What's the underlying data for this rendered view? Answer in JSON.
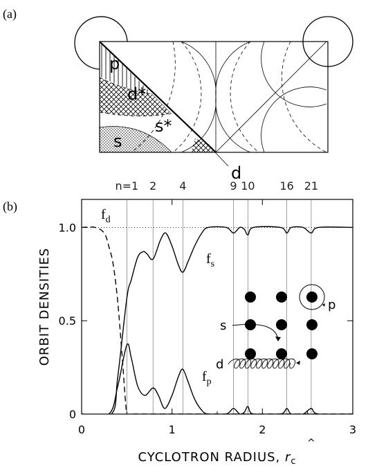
{
  "panel_a": {
    "label": "(a)",
    "regions": {
      "p": "p",
      "d_star": "d*",
      "s": "s",
      "s_star": "s*",
      "d": "d"
    }
  },
  "panel_b": {
    "label": "(b)",
    "n_labels": [
      "n=1",
      "2",
      "4",
      "9",
      "10",
      "16",
      "21"
    ],
    "inset": {
      "s_label": "s",
      "p_label": "p",
      "d_label": "d"
    }
  },
  "chart_data": {
    "type": "line",
    "title": "",
    "xlabel": "CYCLOTRON RADIUS, r̂c",
    "ylabel": "ORBIT DENSITIES",
    "xlim": [
      0,
      3
    ],
    "ylim": [
      0,
      1.15
    ],
    "xticks": [
      "0",
      "1",
      "2",
      "3"
    ],
    "yticks": [
      "0",
      "0.5",
      "1.0"
    ],
    "commensurate_n": [
      1,
      2,
      4,
      9,
      10,
      16,
      21
    ],
    "commensurate_x": [
      0.5,
      0.79,
      1.12,
      1.68,
      1.84,
      2.27,
      2.54
    ],
    "series": [
      {
        "name": "fd",
        "style": "dashed",
        "x": [
          0,
          0.15,
          0.25,
          0.3,
          0.35,
          0.4,
          0.45,
          0.5,
          0.55,
          3
        ],
        "y": [
          1.0,
          1.0,
          0.97,
          0.9,
          0.8,
          0.6,
          0.3,
          0.0,
          0.0,
          0.0
        ]
      },
      {
        "name": "fs",
        "style": "solid",
        "x": [
          0,
          0.33,
          0.4,
          0.5,
          0.55,
          0.62,
          0.68,
          0.72,
          0.79,
          0.87,
          0.93,
          1.0,
          1.07,
          1.12,
          1.18,
          1.25,
          1.33,
          1.4,
          1.6,
          1.68,
          1.75,
          1.8,
          1.84,
          1.9,
          2.2,
          2.27,
          2.32,
          2.45,
          2.54,
          2.62,
          3.0
        ],
        "y": [
          0.0,
          0.0,
          0.2,
          0.62,
          0.72,
          0.84,
          0.87,
          0.86,
          0.83,
          0.93,
          0.97,
          0.9,
          0.8,
          0.76,
          0.82,
          0.9,
          0.97,
          1.0,
          1.0,
          0.97,
          1.0,
          0.99,
          0.96,
          1.0,
          1.0,
          0.97,
          1.0,
          1.0,
          0.97,
          1.0,
          1.0
        ]
      },
      {
        "name": "fp",
        "style": "solid",
        "x": [
          0,
          0.3,
          0.4,
          0.5,
          0.55,
          0.62,
          0.7,
          0.79,
          0.85,
          0.92,
          1.0,
          1.07,
          1.12,
          1.18,
          1.25,
          1.33,
          1.4,
          1.6,
          1.68,
          1.75,
          1.8,
          1.84,
          1.9,
          2.2,
          2.27,
          2.32,
          2.45,
          2.54,
          2.62,
          3.0
        ],
        "y": [
          0.0,
          0.0,
          0.15,
          0.37,
          0.3,
          0.15,
          0.1,
          0.14,
          0.1,
          0.03,
          0.1,
          0.2,
          0.24,
          0.17,
          0.08,
          0.02,
          0.0,
          0.0,
          0.03,
          0.0,
          0.01,
          0.04,
          0.0,
          0.0,
          0.03,
          0.0,
          0.0,
          0.03,
          0.0,
          0.0
        ]
      }
    ],
    "reference_line_y": 1.0,
    "legend": "curve labels on plot"
  }
}
